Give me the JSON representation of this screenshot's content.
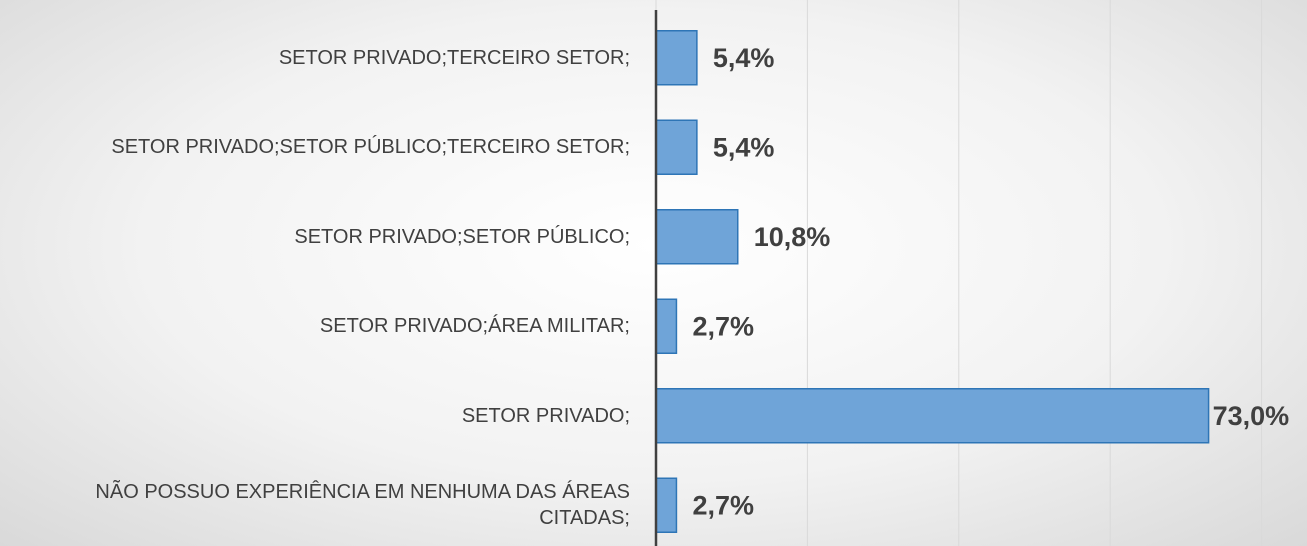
{
  "chart_data": {
    "type": "bar",
    "orientation": "horizontal",
    "categories": [
      "SETOR PRIVADO;TERCEIRO SETOR;",
      "SETOR PRIVADO;SETOR PÚBLICO;TERCEIRO SETOR;",
      "SETOR PRIVADO;SETOR PÚBLICO;",
      "SETOR PRIVADO;ÁREA MILITAR;",
      "SETOR PRIVADO;",
      "NÃO POSSUO EXPERIÊNCIA EM NENHUMA DAS ÁREAS CITADAS;"
    ],
    "values": [
      5.4,
      5.4,
      10.8,
      2.7,
      73.0,
      2.7
    ],
    "value_labels": [
      "5,4%",
      "5,4%",
      "10,8%",
      "2,7%",
      "73,0%",
      "2,7%"
    ],
    "color": "#6fa4d8",
    "xlim": [
      0,
      86
    ],
    "xticks": [
      0,
      20,
      40,
      60,
      80
    ],
    "grid": true
  }
}
